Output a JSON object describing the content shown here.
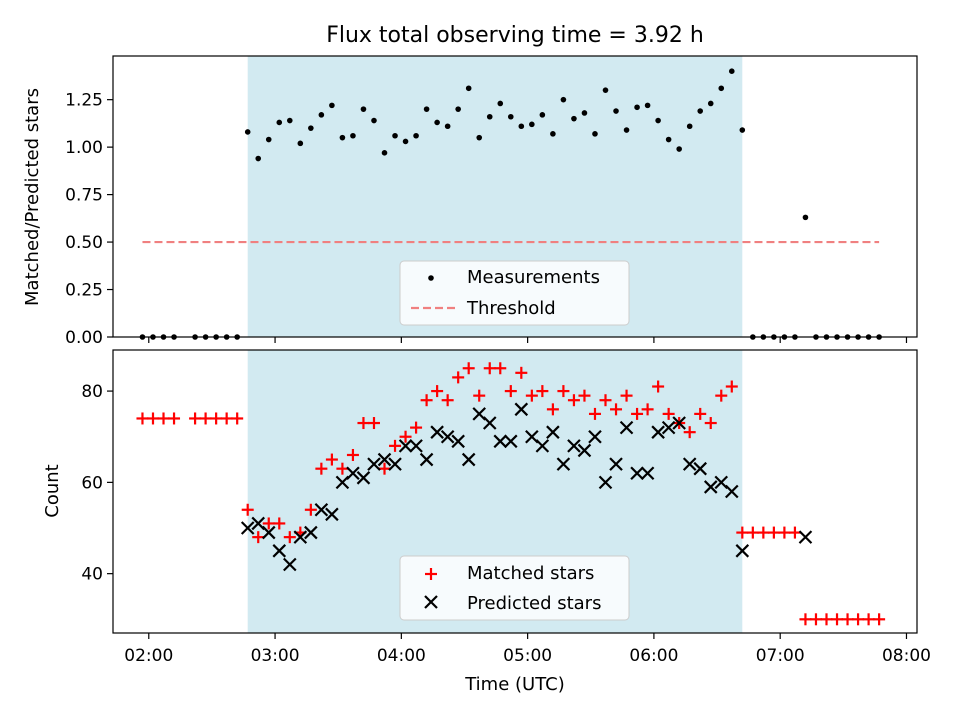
{
  "chart_data": [
    {
      "type": "scatter",
      "title": "Flux total observing time = 3.92 h",
      "xlabel": "",
      "ylabel": "Matched/Predicted stars",
      "xlim": [
        "01:43",
        "08:05"
      ],
      "ylim": [
        0,
        1.48
      ],
      "yticks": [
        0.0,
        0.25,
        0.5,
        0.75,
        1.0,
        1.25
      ],
      "yticklabels": [
        "0.00",
        "0.25",
        "0.50",
        "0.75",
        "1.00",
        "1.25"
      ],
      "shaded_region": {
        "x": [
          "02:47",
          "06:42"
        ],
        "color": "#add8e6"
      },
      "legend": {
        "placement": "bottom-center",
        "entries": [
          "Measurements",
          "Threshold"
        ]
      },
      "series": [
        {
          "name": "Measurements",
          "kind": "scatter",
          "marker": "dot",
          "color": "#000000",
          "x": [
            "01:57",
            "02:02",
            "02:07",
            "02:12",
            "02:22",
            "02:27",
            "02:32",
            "02:37",
            "02:42",
            "02:47",
            "02:52",
            "02:57",
            "03:02",
            "03:07",
            "03:12",
            "03:17",
            "03:22",
            "03:27",
            "03:32",
            "03:37",
            "03:42",
            "03:47",
            "03:52",
            "03:57",
            "04:02",
            "04:07",
            "04:12",
            "04:17",
            "04:22",
            "04:27",
            "04:32",
            "04:37",
            "04:42",
            "04:47",
            "04:52",
            "04:57",
            "05:02",
            "05:07",
            "05:12",
            "05:17",
            "05:22",
            "05:27",
            "05:32",
            "05:37",
            "05:42",
            "05:47",
            "05:52",
            "05:57",
            "06:02",
            "06:07",
            "06:12",
            "06:17",
            "06:22",
            "06:27",
            "06:32",
            "06:37",
            "06:42",
            "06:47",
            "06:52",
            "06:57",
            "07:02",
            "07:07",
            "07:12",
            "07:17",
            "07:22",
            "07:27",
            "07:32",
            "07:37",
            "07:42",
            "07:47"
          ],
          "y": [
            0,
            0,
            0,
            0,
            0,
            0,
            0,
            0,
            0,
            1.08,
            0.94,
            1.04,
            1.13,
            1.14,
            1.02,
            1.1,
            1.17,
            1.22,
            1.05,
            1.06,
            1.2,
            1.14,
            0.97,
            1.06,
            1.03,
            1.06,
            1.2,
            1.13,
            1.11,
            1.2,
            1.31,
            1.05,
            1.16,
            1.23,
            1.16,
            1.11,
            1.12,
            1.17,
            1.07,
            1.25,
            1.15,
            1.18,
            1.07,
            1.3,
            1.19,
            1.09,
            1.21,
            1.22,
            1.14,
            1.04,
            0.99,
            1.11,
            1.19,
            1.23,
            1.31,
            1.4,
            1.09,
            0,
            0,
            0,
            0,
            0,
            0.63,
            0,
            0,
            0,
            0,
            0,
            0,
            0
          ]
        },
        {
          "name": "Threshold",
          "kind": "line",
          "style": "dashed",
          "color": "#f08080",
          "x": [
            "01:57",
            "07:47"
          ],
          "y": [
            0.5,
            0.5
          ]
        }
      ]
    },
    {
      "type": "scatter",
      "title": "",
      "xlabel": "Time (UTC)",
      "ylabel": "Count",
      "xlim": [
        "01:43",
        "08:05"
      ],
      "ylim": [
        27,
        89
      ],
      "yticks": [
        40,
        60,
        80
      ],
      "yticklabels": [
        "40",
        "60",
        "80"
      ],
      "xticks": [
        "02:00",
        "03:00",
        "04:00",
        "05:00",
        "06:00",
        "07:00",
        "08:00"
      ],
      "xticklabels": [
        "02:00",
        "03:00",
        "04:00",
        "05:00",
        "06:00",
        "07:00",
        "08:00"
      ],
      "shaded_region": {
        "x": [
          "02:47",
          "06:42"
        ],
        "color": "#add8e6"
      },
      "legend": {
        "placement": "bottom-center",
        "entries": [
          "Matched stars",
          "Predicted stars"
        ]
      },
      "series": [
        {
          "name": "Matched stars",
          "kind": "scatter",
          "marker": "plus",
          "color": "#ff0000",
          "x": [
            "01:57",
            "02:02",
            "02:07",
            "02:12",
            "02:22",
            "02:27",
            "02:32",
            "02:37",
            "02:42",
            "02:47",
            "02:52",
            "02:57",
            "03:02",
            "03:07",
            "03:12",
            "03:17",
            "03:22",
            "03:27",
            "03:32",
            "03:37",
            "03:42",
            "03:47",
            "03:52",
            "03:57",
            "04:02",
            "04:07",
            "04:12",
            "04:17",
            "04:22",
            "04:27",
            "04:32",
            "04:37",
            "04:42",
            "04:47",
            "04:52",
            "04:57",
            "05:02",
            "05:07",
            "05:12",
            "05:17",
            "05:22",
            "05:27",
            "05:32",
            "05:37",
            "05:42",
            "05:47",
            "05:52",
            "05:57",
            "06:02",
            "06:07",
            "06:12",
            "06:17",
            "06:22",
            "06:27",
            "06:32",
            "06:37",
            "06:42",
            "06:47",
            "06:52",
            "06:57",
            "07:02",
            "07:07",
            "07:12",
            "07:17",
            "07:22",
            "07:27",
            "07:32",
            "07:37",
            "07:42",
            "07:47"
          ],
          "y": [
            74,
            74,
            74,
            74,
            74,
            74,
            74,
            74,
            74,
            54,
            48,
            51,
            51,
            48,
            49,
            54,
            63,
            65,
            63,
            66,
            73,
            73,
            63,
            68,
            70,
            72,
            78,
            80,
            78,
            83,
            85,
            79,
            85,
            85,
            80,
            84,
            79,
            80,
            76,
            80,
            78,
            79,
            75,
            78,
            76,
            79,
            75,
            76,
            81,
            75,
            73,
            71,
            75,
            73,
            79,
            81,
            49,
            49,
            49,
            49,
            49,
            49,
            30,
            30,
            30,
            30,
            30,
            30,
            30,
            30
          ]
        },
        {
          "name": "Predicted stars",
          "kind": "scatter",
          "marker": "x",
          "color": "#000000",
          "x": [
            "02:47",
            "02:52",
            "02:57",
            "03:02",
            "03:07",
            "03:12",
            "03:17",
            "03:22",
            "03:27",
            "03:32",
            "03:37",
            "03:42",
            "03:47",
            "03:52",
            "03:57",
            "04:02",
            "04:07",
            "04:12",
            "04:17",
            "04:22",
            "04:27",
            "04:32",
            "04:37",
            "04:42",
            "04:47",
            "04:52",
            "04:57",
            "05:02",
            "05:07",
            "05:12",
            "05:17",
            "05:22",
            "05:27",
            "05:32",
            "05:37",
            "05:42",
            "05:47",
            "05:52",
            "05:57",
            "06:02",
            "06:07",
            "06:12",
            "06:17",
            "06:22",
            "06:27",
            "06:32",
            "06:37",
            "06:42",
            "07:12"
          ],
          "y": [
            50,
            51,
            49,
            45,
            42,
            48,
            49,
            54,
            53,
            60,
            62,
            61,
            64,
            65,
            64,
            68,
            68,
            65,
            71,
            70,
            69,
            65,
            75,
            73,
            69,
            69,
            76,
            70,
            68,
            71,
            64,
            68,
            67,
            70,
            60,
            64,
            72,
            62,
            62,
            71,
            72,
            73,
            64,
            63,
            59,
            60,
            58,
            45,
            48
          ]
        }
      ]
    }
  ]
}
